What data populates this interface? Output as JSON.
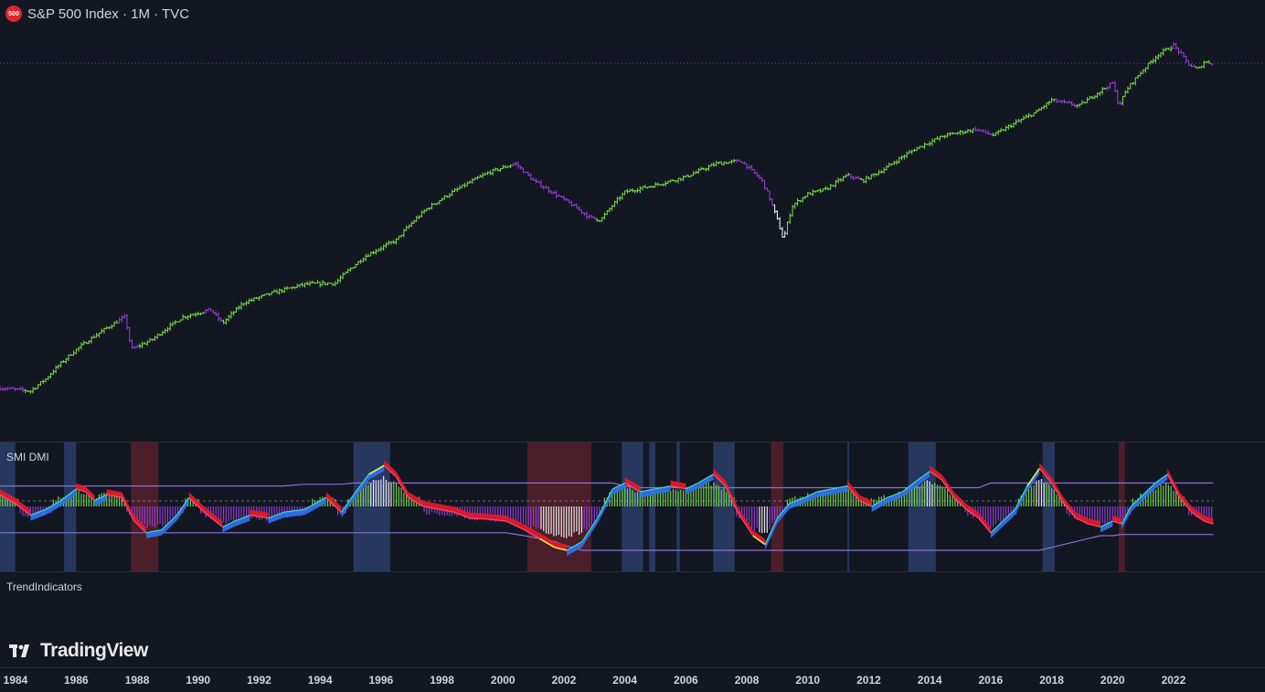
{
  "header": {
    "badge": "500",
    "title": "S&P 500 Index · 1M · TVC"
  },
  "smi_pane": {
    "label": "SMI DMI"
  },
  "trend_pane": {
    "label": "TrendIndicators"
  },
  "branding": {
    "logo_text": "TradingView"
  },
  "colors": {
    "background": "#131722",
    "bull": "#7ce04a",
    "bear": "#9c3fe0",
    "extreme": "#ffffff",
    "band": "#8c6fd8",
    "blue_zone": "#26385e",
    "red_zone": "#4a1f2a"
  },
  "chart_data": [
    {
      "type": "line",
      "name": "price",
      "x_unit": "year",
      "xlim": [
        1983.5,
        2025.0
      ],
      "x_ticks": [
        "1984",
        "1986",
        "1988",
        "1990",
        "1992",
        "1994",
        "1996",
        "1998",
        "2000",
        "2002",
        "2004",
        "2006",
        "2008",
        "2010",
        "2012",
        "2014",
        "2016",
        "2018",
        "2020",
        "2022"
      ],
      "x_tick_values": [
        1984,
        1986,
        1988,
        1990,
        1992,
        1994,
        1996,
        1998,
        2000,
        2002,
        2004,
        2006,
        2008,
        2010,
        2012,
        2014,
        2016,
        2018,
        2020,
        2022
      ],
      "log_scale": true,
      "x": [
        1983.5,
        1984.5,
        1985.0,
        1986.0,
        1987.6,
        1987.8,
        1988.5,
        1989.5,
        1990.4,
        1990.8,
        1991.5,
        1992.5,
        1993.5,
        1994.5,
        1995.5,
        1996.5,
        1997.5,
        1998.5,
        1999.5,
        2000.4,
        2001.0,
        2001.7,
        2002.2,
        2002.8,
        2003.2,
        2004.0,
        2005.0,
        2006.0,
        2007.0,
        2007.8,
        2008.5,
        2008.9,
        2009.2,
        2009.5,
        2010.0,
        2010.6,
        2011.3,
        2011.8,
        2012.5,
        2013.5,
        2014.5,
        2015.5,
        2016.1,
        2016.8,
        2017.5,
        2018.0,
        2018.9,
        2019.5,
        2020.0,
        2020.2,
        2020.5,
        2021.0,
        2021.5,
        2022.0,
        2022.5,
        2022.8,
        2023.0,
        2023.3
      ],
      "y": [
        165,
        160,
        180,
        240,
        330,
        240,
        265,
        330,
        355,
        310,
        380,
        420,
        455,
        460,
        600,
        700,
        950,
        1150,
        1350,
        1480,
        1250,
        1100,
        1000,
        880,
        850,
        1120,
        1200,
        1300,
        1480,
        1520,
        1250,
        930,
        700,
        980,
        1100,
        1150,
        1320,
        1250,
        1400,
        1700,
        1950,
        2070,
        1950,
        2200,
        2450,
        2750,
        2600,
        2950,
        3250,
        2600,
        3100,
        3700,
        4300,
        4700,
        3900,
        3700,
        4000,
        3950
      ],
      "latest": 3950
    },
    {
      "type": "line",
      "name": "SMI DMI",
      "ylim": [
        -100,
        100
      ],
      "x": [
        1983.5,
        1984.0,
        1984.5,
        1985.0,
        1985.5,
        1986.0,
        1986.3,
        1986.6,
        1987.0,
        1987.5,
        1987.9,
        1988.3,
        1988.8,
        1989.3,
        1989.7,
        1990.2,
        1990.8,
        1991.2,
        1991.7,
        1992.3,
        1992.8,
        1993.5,
        1994.2,
        1994.7,
        1995.1,
        1995.6,
        1996.1,
        1996.5,
        1996.9,
        1997.4,
        1997.9,
        1998.4,
        1998.9,
        1999.5,
        2000.1,
        2000.7,
        2001.2,
        2001.7,
        2002.1,
        2002.6,
        2003.1,
        2003.6,
        2004.0,
        2004.5,
        2005.0,
        2005.5,
        2006.0,
        2006.4,
        2006.9,
        2007.3,
        2007.7,
        2008.2,
        2008.6,
        2009.0,
        2009.4,
        2009.9,
        2010.3,
        2010.8,
        2011.3,
        2011.7,
        2012.1,
        2012.6,
        2013.1,
        2013.6,
        2014.0,
        2014.4,
        2014.8,
        2015.2,
        2015.6,
        2016.0,
        2016.4,
        2016.8,
        2017.2,
        2017.6,
        2018.0,
        2018.4,
        2018.8,
        2019.2,
        2019.6,
        2020.0,
        2020.3,
        2020.6,
        2021.0,
        2021.4,
        2021.8,
        2022.2,
        2022.6,
        2023.0,
        2023.3
      ],
      "y": [
        20,
        5,
        -15,
        -5,
        10,
        30,
        25,
        10,
        20,
        15,
        -25,
        -45,
        -40,
        -15,
        15,
        -10,
        -35,
        -25,
        -15,
        -20,
        -10,
        -5,
        15,
        -10,
        20,
        55,
        70,
        50,
        15,
        0,
        -5,
        -10,
        -20,
        -22,
        -25,
        -40,
        -55,
        -70,
        -75,
        -60,
        -20,
        30,
        40,
        25,
        30,
        35,
        30,
        40,
        55,
        35,
        -10,
        -50,
        -65,
        -20,
        5,
        15,
        25,
        30,
        35,
        10,
        0,
        15,
        25,
        45,
        60,
        45,
        15,
        -5,
        -20,
        -45,
        -25,
        -5,
        35,
        65,
        40,
        5,
        -20,
        -30,
        -35,
        -25,
        -30,
        0,
        20,
        40,
        55,
        15,
        -10,
        -25,
        -30
      ],
      "upper_band": [
        35,
        35,
        35,
        35,
        35,
        35,
        35,
        35,
        35,
        35,
        35,
        35,
        35,
        35,
        35,
        35,
        35,
        35,
        35,
        35,
        35,
        38,
        38,
        38,
        40,
        40,
        40,
        40,
        40,
        40,
        40,
        40,
        40,
        40,
        40,
        40,
        40,
        40,
        40,
        40,
        40,
        40,
        35,
        32,
        32,
        32,
        32,
        32,
        32,
        32,
        32,
        32,
        32,
        32,
        32,
        32,
        32,
        32,
        32,
        32,
        32,
        32,
        32,
        32,
        32,
        32,
        32,
        32,
        32,
        40,
        40,
        40,
        40,
        40,
        40,
        40,
        40,
        40,
        40,
        40,
        40,
        40,
        40,
        40,
        40,
        40,
        40,
        40,
        40
      ],
      "lower_band": [
        -45,
        -45,
        -45,
        -45,
        -45,
        -45,
        -45,
        -45,
        -45,
        -45,
        -45,
        -45,
        -45,
        -45,
        -45,
        -45,
        -45,
        -45,
        -45,
        -45,
        -45,
        -45,
        -45,
        -45,
        -45,
        -45,
        -45,
        -45,
        -45,
        -45,
        -45,
        -45,
        -45,
        -45,
        -45,
        -50,
        -55,
        -60,
        -68,
        -75,
        -75,
        -75,
        -75,
        -75,
        -75,
        -75,
        -75,
        -75,
        -75,
        -75,
        -75,
        -75,
        -75,
        -75,
        -75,
        -75,
        -75,
        -75,
        -75,
        -75,
        -75,
        -75,
        -75,
        -75,
        -75,
        -75,
        -75,
        -75,
        -75,
        -75,
        -75,
        -75,
        -75,
        -75,
        -70,
        -65,
        -60,
        -55,
        -50,
        -50,
        -48,
        -48,
        -48,
        -48,
        -48,
        -48,
        -48,
        -48,
        -48
      ],
      "blue_zones": [
        [
          1983.5,
          1984.0
        ],
        [
          1985.6,
          1986.0
        ],
        [
          1995.1,
          1996.3
        ],
        [
          2003.9,
          2004.6
        ],
        [
          2004.8,
          2005.0
        ],
        [
          2005.7,
          2005.8
        ],
        [
          2006.9,
          2007.6
        ],
        [
          2011.3,
          2011.35
        ],
        [
          2013.3,
          2014.2
        ],
        [
          2017.7,
          2018.1
        ]
      ],
      "red_zones": [
        [
          1987.8,
          1988.7
        ],
        [
          2000.8,
          2002.9
        ],
        [
          2008.8,
          2009.2
        ],
        [
          2020.2,
          2020.4
        ]
      ]
    }
  ]
}
